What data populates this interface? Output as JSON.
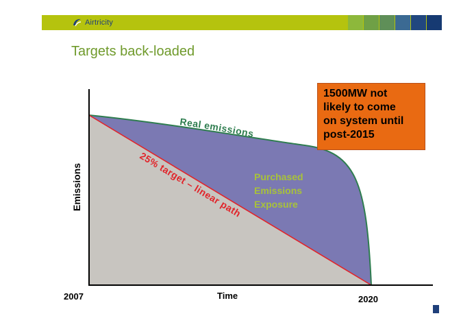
{
  "header": {
    "logo_text": "Airtricity",
    "bar_color": "#b5c30e",
    "swatch_colors": [
      "#8db83b",
      "#6fa046",
      "#5f8f58",
      "#3b6a93",
      "#21477f",
      "#163a72"
    ]
  },
  "slide": {
    "title": "Targets back-loaded"
  },
  "diagram": {
    "ylabel": "Emissions",
    "xlabel": "Time",
    "x_start_label": "2007",
    "x_end_label": "2020",
    "real_emissions_label": "Real emissions",
    "target_label": "25% target – linear path",
    "area_label_lines": [
      "Purchased",
      "Emissions",
      "Exposure"
    ],
    "note_lines": [
      "1500MW not",
      "likely to come",
      "on system until",
      "post-2015"
    ],
    "colors": {
      "target_area": "#c8c5c0",
      "exposure_area": "#7b79b3",
      "real_line": "#2e7d4f",
      "target_line": "#e1242a",
      "note_box": "#e96a12",
      "area_label": "#a8c23a"
    }
  }
}
